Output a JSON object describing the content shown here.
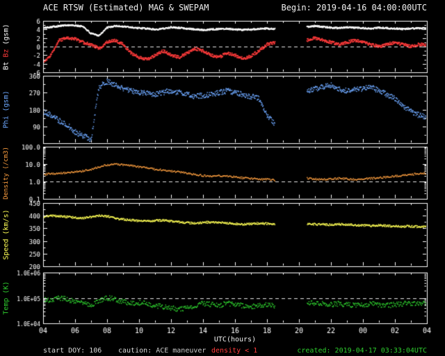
{
  "header": {
    "title": "ACE RTSW (Estimated) MAG & SWEPAM",
    "begin": "Begin: 2019-04-16 04:00:00UTC"
  },
  "footer": {
    "start_doy": "start DOY: 106",
    "caution_label": "caution: ",
    "maneuver": "ACE maneuver",
    "density_warning": "density < 1",
    "created": "created: 2019-04-17 03:33:04UTC"
  },
  "colors": {
    "background": "#000000",
    "frame": "#ffffff",
    "text": "#f0f0f0",
    "maneuver": "#c8c8c8",
    "warn": "#ff3b3b",
    "created": "#2ecc2e"
  },
  "chart_data": {
    "type": "scatter",
    "title": "ACE RTSW (Estimated) MAG & SWEPAM",
    "x_axis": {
      "label": "UTC(hours)",
      "range_hours": [
        0,
        24
      ],
      "tick_hours": [
        0,
        2,
        4,
        6,
        8,
        10,
        12,
        14,
        16,
        18,
        20,
        22,
        24
      ],
      "tick_labels": [
        "04",
        "06",
        "08",
        "10",
        "12",
        "14",
        "16",
        "18",
        "20",
        "22",
        "00",
        "02",
        "04"
      ]
    },
    "x_step_hours": 0.5,
    "gap_hours": [
      14.6,
      16.25
    ],
    "panels": [
      {
        "id": "mag",
        "ylabel_parts": [
          {
            "text": "Bt ",
            "color": "#ffffff"
          },
          {
            "text": "Bz ",
            "color": "#ff3b3b"
          },
          {
            "text": "(gsm)",
            "color": "#ffffff"
          }
        ],
        "scale": "linear",
        "ylim": [
          -6,
          6
        ],
        "yticks": [
          -6,
          -4,
          -2,
          0,
          2,
          4,
          6
        ],
        "ytick_labels": [
          "-6",
          "-4",
          "-2",
          "0",
          "2",
          "4",
          "6"
        ],
        "dashed_at": [
          0
        ],
        "series": [
          {
            "name": "Bt",
            "color": "#ffffff",
            "y": [
              4.3,
              4.6,
              4.8,
              5.0,
              4.9,
              4.7,
              3.0,
              2.6,
              4.4,
              4.8,
              4.7,
              4.5,
              4.3,
              4.2,
              4.0,
              4.2,
              4.5,
              4.4,
              4.2,
              4.0,
              3.9,
              4.0,
              4.1,
              4.2,
              4.0,
              3.9,
              4.0,
              4.1,
              4.2,
              4.1,
              null,
              null,
              null,
              4.6,
              4.8,
              4.6,
              4.4,
              4.3,
              4.5,
              4.4,
              4.3,
              4.2,
              4.4,
              4.3,
              4.2,
              4.1,
              4.2,
              4.3,
              4.2
            ]
          },
          {
            "name": "Bz",
            "color": "#ff3b3b",
            "y": [
              -3.5,
              -2.0,
              1.5,
              2.0,
              1.8,
              1.0,
              0.5,
              -0.5,
              1.0,
              1.5,
              0.5,
              -1.5,
              -2.5,
              -3.0,
              -2.0,
              -1.0,
              -2.0,
              -2.5,
              -1.5,
              -0.5,
              -1.0,
              -2.0,
              -2.5,
              -1.5,
              -2.0,
              -2.8,
              -2.2,
              -1.0,
              0.5,
              1.0,
              null,
              null,
              null,
              1.5,
              2.0,
              1.5,
              1.0,
              0.5,
              1.0,
              1.5,
              1.0,
              0.5,
              0.0,
              0.5,
              1.0,
              0.5,
              0.0,
              0.5,
              0.3
            ]
          }
        ]
      },
      {
        "id": "phi",
        "ylabel_parts": [
          {
            "text": "Phi (gsm)",
            "color": "#6ea8ff"
          }
        ],
        "scale": "linear",
        "ylim": [
          0,
          360
        ],
        "yticks": [
          90,
          180,
          270,
          360
        ],
        "ytick_labels": [
          "90",
          "180",
          "270",
          "360"
        ],
        "dashed_at": [],
        "series": [
          {
            "name": "Phi",
            "color": "#6ea8ff",
            "y": [
              170,
              150,
              120,
              100,
              60,
              40,
              20,
              300,
              330,
              310,
              290,
              280,
              270,
              265,
              260,
              270,
              280,
              270,
              260,
              250,
              255,
              260,
              270,
              280,
              270,
              260,
              250,
              240,
              150,
              100,
              null,
              null,
              null,
              280,
              290,
              300,
              310,
              290,
              280,
              285,
              290,
              300,
              280,
              260,
              240,
              200,
              170,
              150,
              140
            ]
          }
        ]
      },
      {
        "id": "density",
        "ylabel_parts": [
          {
            "text": "Density (/cm3)",
            "color": "#ffa040"
          }
        ],
        "scale": "log",
        "ylim": [
          0.1,
          100
        ],
        "yticks": [
          0.1,
          1,
          10,
          100
        ],
        "ytick_labels": [
          "0.1",
          "1.0",
          "10.0",
          "100.0"
        ],
        "dashed_at": [
          1
        ],
        "series": [
          {
            "name": "Density",
            "color": "#ffa040",
            "y": [
              2.5,
              2.8,
              3.0,
              3.2,
              3.5,
              4.0,
              5.0,
              7.0,
              9.0,
              10.0,
              9.0,
              8.0,
              7.0,
              6.0,
              5.0,
              4.5,
              4.0,
              3.5,
              3.0,
              2.5,
              2.2,
              2.0,
              2.2,
              2.0,
              1.8,
              1.6,
              1.5,
              1.4,
              1.3,
              1.2,
              null,
              null,
              null,
              1.5,
              1.4,
              1.3,
              1.4,
              1.5,
              1.4,
              1.3,
              1.4,
              1.5,
              1.6,
              1.8,
              2.0,
              2.2,
              2.5,
              2.8,
              3.0
            ]
          }
        ]
      },
      {
        "id": "speed",
        "ylabel_parts": [
          {
            "text": "Speed (km/s)",
            "color": "#ffff55"
          }
        ],
        "scale": "linear",
        "ylim": [
          200,
          450
        ],
        "yticks": [
          200,
          250,
          300,
          350,
          400,
          450
        ],
        "ytick_labels": [
          "200",
          "250",
          "300",
          "350",
          "400",
          "450"
        ],
        "dashed_at": [],
        "series": [
          {
            "name": "Speed",
            "color": "#ffff55",
            "y": [
              395,
              400,
              398,
              395,
              392,
              390,
              395,
              400,
              398,
              390,
              385,
              382,
              380,
              378,
              380,
              382,
              378,
              375,
              372,
              370,
              372,
              375,
              373,
              370,
              368,
              366,
              368,
              370,
              368,
              366,
              null,
              null,
              null,
              368,
              366,
              365,
              364,
              366,
              365,
              363,
              362,
              360,
              362,
              360,
              358,
              357,
              358,
              356,
              355
            ]
          }
        ]
      },
      {
        "id": "temp",
        "ylabel_parts": [
          {
            "text": "Temp (K)",
            "color": "#2ecc2e"
          }
        ],
        "scale": "log",
        "ylim": [
          10000,
          1000000
        ],
        "yticks": [
          10000,
          100000,
          1000000
        ],
        "ytick_labels": [
          "1.0E+04",
          "1.0E+05",
          "1.0E+06"
        ],
        "dashed_at": [
          100000
        ],
        "series": [
          {
            "name": "Temp",
            "color": "#2ecc2e",
            "y": [
              90000,
              80000,
              100000,
              90000,
              70000,
              60000,
              50000,
              80000,
              100000,
              90000,
              70000,
              60000,
              65000,
              60000,
              50000,
              45000,
              40000,
              35000,
              40000,
              50000,
              60000,
              55000,
              50000,
              60000,
              55000,
              50000,
              45000,
              50000,
              55000,
              50000,
              null,
              null,
              null,
              60000,
              65000,
              60000,
              55000,
              60000,
              55000,
              50000,
              55000,
              60000,
              55000,
              50000,
              55000,
              58000,
              60000,
              65000,
              60000
            ]
          }
        ]
      }
    ]
  }
}
